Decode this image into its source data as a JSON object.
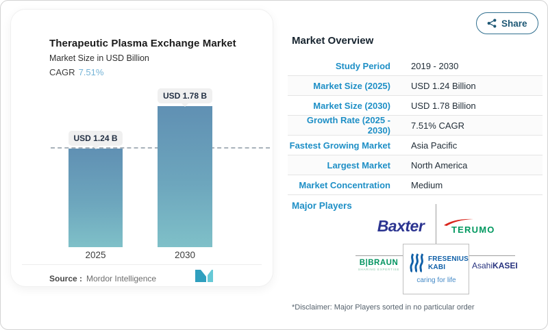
{
  "share_button": {
    "label": "Share"
  },
  "chart": {
    "title": "Therapeutic Plasma Exchange Market",
    "subtitle": "Market Size in USD Billion",
    "cagr_label": "CAGR",
    "cagr_value": "7.51%",
    "source_label": "Source :",
    "source_value": "Mordor Intelligence"
  },
  "chart_data": {
    "type": "bar",
    "categories": [
      "2025",
      "2030"
    ],
    "values": [
      1.24,
      1.78
    ],
    "bar_labels": [
      "USD 1.24 B",
      "USD 1.78 B"
    ],
    "title": "Therapeutic Plasma Exchange Market",
    "xlabel": "",
    "ylabel": "Market Size in USD Billion",
    "ylim": [
      0,
      2.05
    ],
    "grid": "single dashed horizontal reference line at y=1.24 (top of first bar)",
    "legend": "none",
    "bar_gradient": [
      "#6090b3",
      "#7fc0c8"
    ]
  },
  "overview": {
    "title": "Market Overview",
    "rows": [
      {
        "label": "Study Period",
        "value": "2019 - 2030"
      },
      {
        "label": "Market Size (2025)",
        "value": "USD 1.24 Billion"
      },
      {
        "label": "Market Size (2030)",
        "value": "USD 1.78 Billion"
      },
      {
        "label": "Growth Rate (2025 - 2030)",
        "value": "7.51% CAGR"
      },
      {
        "label": "Fastest Growing Market",
        "value": "Asia Pacific"
      },
      {
        "label": "Largest Market",
        "value": "North America"
      },
      {
        "label": "Market Concentration",
        "value": "Medium"
      }
    ]
  },
  "players": {
    "title": "Major Players",
    "baxter": "Baxter",
    "terumo": "TERUMO",
    "braun": "B|BRAUN",
    "braun_tagline": "SHARING EXPERTISE",
    "fresenius_line1": "FRESENIUS",
    "fresenius_line2": "KABI",
    "fresenius_tagline": "caring for life",
    "asahi_regular": "Asahi",
    "asahi_bold": "KASEI",
    "disclaimer": "*Disclaimer: Major Players sorted in no particular order"
  },
  "colors": {
    "accent_blue": "#1e8fc6",
    "cagr_value_blue": "#74b3d6",
    "bar_top": "#6090b3",
    "bar_bottom": "#7fc0c8",
    "baxter_navy": "#2b3490",
    "terumo_green": "#00985f",
    "terumo_red": "#d9251c",
    "braun_green": "#00935f",
    "fresenius_blue": "#1060a8",
    "asahi_navy": "#27327e",
    "share_border": "#2e6e8e"
  }
}
